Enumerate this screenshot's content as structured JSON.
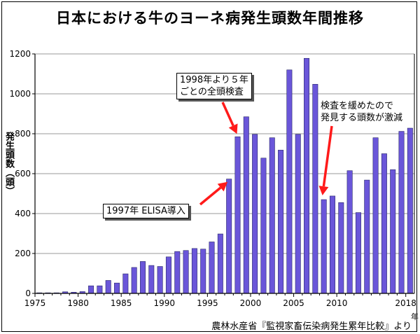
{
  "chart_data": {
    "type": "bar",
    "title": "日本における牛のヨーネ病発生頭数年間推移",
    "ylabel": "発生頭数（頭）",
    "xunit": "年",
    "ylim": [
      0,
      1200
    ],
    "yticks": [
      0,
      200,
      400,
      600,
      800,
      1000,
      1200
    ],
    "xticks": [
      1975,
      1980,
      1985,
      1990,
      1995,
      2000,
      2005,
      2010,
      2018
    ],
    "series": [
      {
        "name": "発生頭数",
        "color": "#6a56d9",
        "years": [
          1975,
          1976,
          1977,
          1978,
          1979,
          1980,
          1981,
          1982,
          1983,
          1984,
          1985,
          1986,
          1987,
          1988,
          1989,
          1990,
          1991,
          1992,
          1993,
          1994,
          1995,
          1996,
          1997,
          1998,
          1999,
          2000,
          2001,
          2002,
          2003,
          2004,
          2005,
          2006,
          2007,
          2008,
          2009,
          2010,
          2011,
          2012,
          2013,
          2014,
          2015,
          2016,
          2017,
          2018
        ],
        "values": [
          3,
          3,
          3,
          8,
          6,
          9,
          38,
          38,
          65,
          52,
          98,
          130,
          160,
          140,
          135,
          183,
          210,
          215,
          225,
          222,
          258,
          298,
          573,
          785,
          885,
          797,
          678,
          780,
          718,
          1120,
          797,
          1178,
          1048,
          470,
          488,
          455,
          615,
          405,
          568,
          780,
          700,
          620,
          812,
          828
        ]
      }
    ],
    "annotations": [
      {
        "text": "1997年 ELISA導入",
        "year": 1997
      },
      {
        "text_lines": [
          "1998年より５年",
          "ごとの全頭検査"
        ],
        "year": 1998
      },
      {
        "text_lines": [
          "検査を緩めたので",
          "発見する頭数が激減"
        ],
        "year": 2008
      }
    ],
    "source": "農林水産省『監視家畜伝染病発生累年比較』より"
  }
}
